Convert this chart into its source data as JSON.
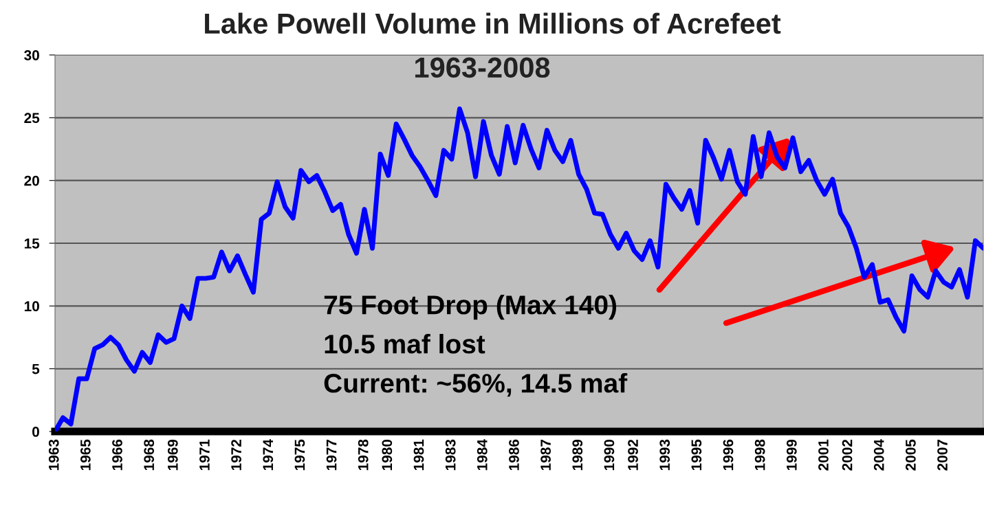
{
  "chart_data": {
    "type": "line",
    "title": "Lake Powell Volume in Millions of Acrefeet",
    "subtitle": "1963-2008",
    "annotations": [
      "75 Foot Drop (Max 140)",
      "10.5 maf lost",
      "Current: ~56%, 14.5 maf"
    ],
    "categories": [
      "1963",
      null,
      null,
      null,
      "1965",
      null,
      null,
      null,
      "1966",
      null,
      null,
      null,
      "1968",
      null,
      null,
      "1969",
      null,
      null,
      null,
      "1971",
      null,
      null,
      null,
      "1972",
      null,
      null,
      null,
      "1974",
      null,
      null,
      null,
      "1975",
      null,
      null,
      null,
      "1977",
      null,
      null,
      null,
      "1978",
      null,
      null,
      "1980",
      null,
      null,
      null,
      "1981",
      null,
      null,
      null,
      "1983",
      null,
      null,
      null,
      "1984",
      null,
      null,
      null,
      "1986",
      null,
      null,
      null,
      "1987",
      null,
      null,
      null,
      "1989",
      null,
      null,
      null,
      "1990",
      null,
      null,
      "1992",
      null,
      null,
      null,
      "1993",
      null,
      null,
      null,
      "1995",
      null,
      null,
      null,
      "1996",
      null,
      null,
      null,
      "1998",
      null,
      null,
      null,
      "1999",
      null,
      null,
      null,
      "2001",
      null,
      null,
      "2002",
      null,
      null,
      null,
      "2004",
      null,
      null,
      null,
      "2005",
      null,
      null,
      null,
      "2007",
      null,
      null,
      null,
      null,
      null
    ],
    "series": [
      {
        "color": "#0000ff",
        "values": [
          0,
          1.1,
          0.6,
          4.2,
          4.2,
          6.6,
          6.9,
          7.5,
          6.9,
          5.7,
          4.8,
          6.3,
          5.5,
          7.7,
          7.1,
          7.4,
          10.0,
          9.0,
          12.2,
          12.2,
          12.3,
          14.3,
          12.8,
          14.0,
          12.5,
          11.1,
          16.9,
          17.4,
          19.9,
          17.9,
          17.0,
          20.8,
          19.9,
          20.4,
          19.1,
          17.6,
          18.1,
          15.7,
          14.2,
          17.7,
          14.6,
          22.1,
          20.4,
          24.5,
          23.3,
          22.0,
          21.1,
          20.0,
          18.8,
          22.4,
          21.7,
          25.7,
          23.8,
          20.3,
          24.7,
          22.0,
          20.5,
          24.3,
          21.4,
          24.4,
          22.5,
          21.0,
          24.0,
          22.4,
          21.5,
          23.2,
          20.5,
          19.3,
          17.4,
          17.3,
          15.7,
          14.6,
          15.8,
          14.4,
          13.7,
          15.2,
          13.1,
          19.7,
          18.6,
          17.7,
          19.2,
          16.6,
          23.2,
          21.8,
          20.1,
          22.4,
          19.9,
          18.9,
          23.5,
          20.3,
          23.8,
          21.9,
          21.0,
          23.4,
          20.7,
          21.6,
          20.0,
          18.9,
          20.1,
          17.4,
          16.3,
          14.6,
          12.3,
          13.3,
          10.3,
          10.5,
          9.1,
          8.0,
          12.4,
          11.3,
          10.7,
          12.8,
          11.9,
          11.5,
          12.9,
          10.7,
          15.2,
          14.6
        ]
      }
    ],
    "ylim": [
      0,
      30
    ],
    "yticks": [
      0,
      5,
      10,
      15,
      20,
      25,
      30
    ],
    "grid": "y",
    "line_style": "solid",
    "marker": "none"
  }
}
